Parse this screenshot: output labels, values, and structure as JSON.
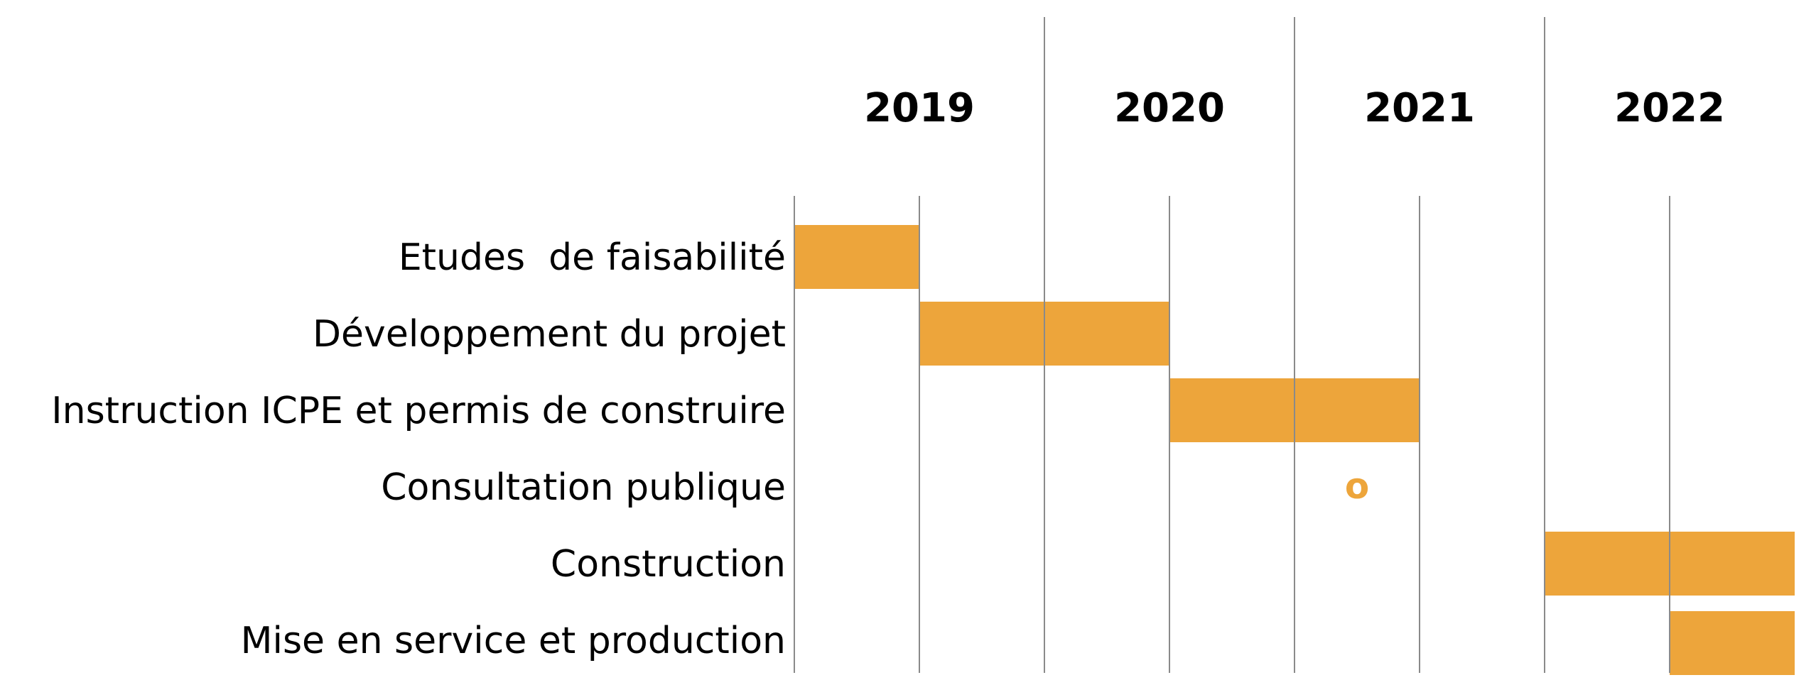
{
  "chart_data": {
    "type": "gantt",
    "title": "",
    "years": [
      "2019",
      "2020",
      "2021",
      "2022"
    ],
    "x_unit": "half-year",
    "tasks": [
      {
        "label": "Etudes  de faisabilité",
        "kind": "bar",
        "start": 0,
        "end": 1
      },
      {
        "label": "Développement du projet",
        "kind": "bar",
        "start": 1,
        "end": 3
      },
      {
        "label": "Instruction ICPE et permis de construire",
        "kind": "bar",
        "start": 3,
        "end": 5
      },
      {
        "label": "Consultation publique",
        "kind": "milestone",
        "at": 4.5,
        "marker": "o"
      },
      {
        "label": "Construction",
        "kind": "bar",
        "start": 6,
        "end": 8
      },
      {
        "label": "Mise en service et production",
        "kind": "bar",
        "start": 7,
        "end": 8
      }
    ],
    "bar_color": "#EDA53B",
    "grid_color": "#8a8a8a"
  }
}
